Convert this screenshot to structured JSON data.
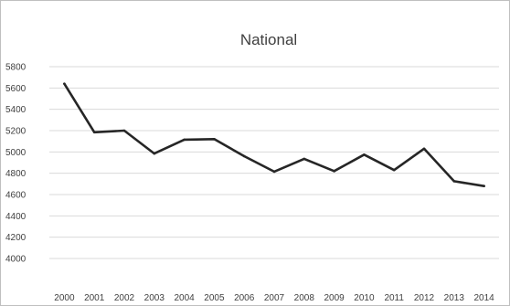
{
  "chart_data": {
    "type": "line",
    "title": "National",
    "xlabel": "",
    "ylabel": "",
    "categories": [
      "2000",
      "2001",
      "2002",
      "2003",
      "2004",
      "2005",
      "2006",
      "2007",
      "2008",
      "2009",
      "2010",
      "2011",
      "2012",
      "2013",
      "2014"
    ],
    "series": [
      {
        "values": [
          5640,
          5185,
          5200,
          4985,
          5115,
          5120,
          4960,
          4815,
          4935,
          4820,
          4975,
          4830,
          5030,
          4725,
          4680
        ]
      }
    ],
    "ylim": [
      4000,
      5800
    ],
    "yticks": [
      "4000",
      "4200",
      "4400",
      "4600",
      "4800",
      "5000",
      "5200",
      "5400",
      "5600",
      "5800"
    ],
    "grid": true,
    "legend": "none",
    "colors": {
      "line": "#262626",
      "grid": "#d9d9d9",
      "text": "#404040"
    }
  }
}
